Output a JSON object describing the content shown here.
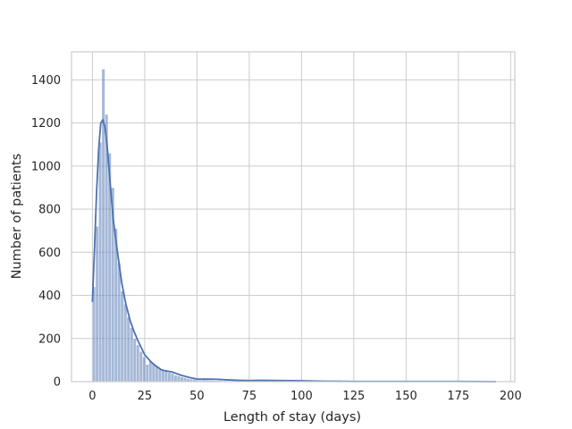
{
  "chart_data": {
    "type": "bar",
    "subtype": "histogram-with-kde",
    "title": "",
    "xlabel": "Length of stay (days)",
    "ylabel": "Number of patients",
    "xlim": [
      -10,
      202
    ],
    "ylim": [
      0,
      1530
    ],
    "xticks": [
      0,
      25,
      50,
      75,
      100,
      125,
      150,
      175,
      200
    ],
    "yticks": [
      0,
      200,
      400,
      600,
      800,
      1000,
      1200,
      1400
    ],
    "grid": true,
    "legend": "none",
    "bar_color": "#4c72b0",
    "bin_width": 1.5,
    "histogram": {
      "bin_starts": [
        0,
        1.5,
        3,
        4.5,
        6,
        7.5,
        9,
        10.5,
        12,
        13.5,
        15,
        16.5,
        18,
        19.5,
        21,
        22.5,
        24,
        25.5,
        27,
        28.5,
        30,
        31.5,
        33,
        34.5,
        36,
        37.5,
        39,
        40.5,
        42,
        43.5,
        45,
        46.5,
        48,
        49.5,
        51,
        52.5,
        54,
        55.5,
        57,
        58.5,
        60,
        61.5,
        63,
        64.5,
        66,
        67.5,
        69,
        70.5,
        72,
        73.5,
        75
      ],
      "counts": [
        440,
        720,
        1110,
        1450,
        1240,
        1060,
        900,
        710,
        550,
        420,
        360,
        300,
        250,
        200,
        170,
        140,
        115,
        80,
        95,
        85,
        70,
        60,
        55,
        48,
        42,
        38,
        30,
        27,
        22,
        18,
        14,
        12,
        10,
        8,
        7,
        9,
        8,
        7,
        6,
        5,
        6,
        4,
        4,
        3,
        3,
        3,
        2,
        2,
        2,
        2,
        2
      ]
    },
    "kde": {
      "x": [
        0,
        1,
        2,
        3,
        4,
        5,
        6,
        7,
        8,
        9,
        10,
        12,
        14,
        16,
        18,
        20,
        22,
        25,
        28,
        30,
        33,
        35,
        38,
        40,
        43,
        46,
        50,
        55,
        60,
        65,
        70,
        75,
        80,
        90,
        100,
        110,
        125,
        150,
        175,
        193
      ],
      "y": [
        370,
        620,
        880,
        1080,
        1200,
        1215,
        1180,
        1100,
        980,
        860,
        750,
        600,
        460,
        360,
        285,
        230,
        185,
        125,
        92,
        75,
        55,
        50,
        45,
        38,
        28,
        20,
        12,
        12,
        11,
        8,
        6,
        5,
        6,
        5,
        4,
        2,
        1,
        1,
        1,
        0
      ]
    }
  }
}
